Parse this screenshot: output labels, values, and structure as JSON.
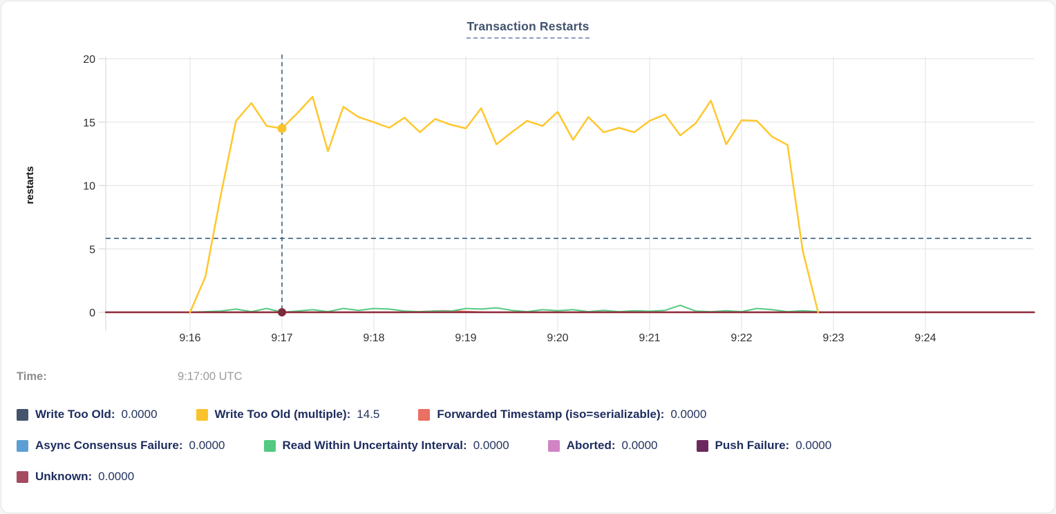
{
  "card": {
    "title": "Transaction Restarts"
  },
  "tooltip": {
    "time_label": "Time:",
    "time_value": "9:17:00 UTC"
  },
  "legend": {
    "rows": [
      {
        "items": [
          {
            "label": "Write Too Old:",
            "value": "0.0000",
            "color": "#44546C"
          },
          {
            "label": "Write Too Old (multiple):",
            "value": "14.5",
            "color": "#FAC32D"
          },
          {
            "label": "Forwarded Timestamp (iso=serializable):",
            "value": "0.0000",
            "color": "#EB6F63"
          }
        ]
      },
      {
        "items": [
          {
            "label": "Async Consensus Failure:",
            "value": "0.0000",
            "color": "#5D9FD3"
          },
          {
            "label": "Read Within Uncertainty Interval:",
            "value": "0.0000",
            "color": "#53C981"
          },
          {
            "label": "Aborted:",
            "value": "0.0000",
            "color": "#D184C4"
          },
          {
            "label": "Push Failure:",
            "value": "0.0000",
            "color": "#6B2A5E"
          }
        ]
      },
      {
        "items": [
          {
            "label": "Unknown:",
            "value": "0.0000",
            "color": "#A44A61"
          }
        ]
      }
    ]
  },
  "chart_data": {
    "type": "line",
    "title": "Transaction Restarts",
    "xlabel": "",
    "ylabel": "restarts",
    "x_ticks": [
      "9:16",
      "9:17",
      "9:18",
      "9:19",
      "9:20",
      "9:21",
      "9:22",
      "9:23",
      "9:24"
    ],
    "y_ticks": [
      0,
      5,
      10,
      15,
      20
    ],
    "ylim": [
      0,
      20
    ],
    "grid": true,
    "grid_color": "#e8e8e8",
    "hline": {
      "value": 5.83,
      "style": "dashed",
      "color": "#3A5E7D"
    },
    "crosshair": {
      "time": "9:17:00 UTC",
      "offset_seconds": 60,
      "color": "#3A5E7D",
      "markers": [
        {
          "series": "Write Too Old (multiple)",
          "value": 14.5,
          "color": "#FAC32D",
          "r": 6.5
        },
        {
          "series": "Unknown",
          "value": 0,
          "color": "#7E2A3D",
          "r": 6
        }
      ]
    },
    "series": [
      {
        "name": "Write Too Old",
        "color": "#44546C",
        "z": 1,
        "width": 2,
        "points": [
          [
            -55,
            0
          ],
          [
            551,
            0
          ]
        ]
      },
      {
        "name": "Async Consensus Failure",
        "color": "#5D9FD3",
        "z": 2,
        "width": 2,
        "points": [
          [
            -55,
            0
          ],
          [
            551,
            0
          ]
        ]
      },
      {
        "name": "Aborted",
        "color": "#D184C4",
        "z": 3,
        "width": 2,
        "points": [
          [
            -55,
            0
          ],
          [
            551,
            0
          ]
        ]
      },
      {
        "name": "Push Failure",
        "color": "#6B2A5E",
        "z": 4,
        "width": 2,
        "points": [
          [
            -55,
            0
          ],
          [
            551,
            0
          ]
        ]
      },
      {
        "name": "Forwarded Timestamp (iso=serializable)",
        "color": "#EB6F63",
        "z": 5,
        "width": 2.2,
        "points": [
          [
            -55,
            0
          ],
          [
            140,
            0
          ],
          [
            150,
            0.05
          ],
          [
            160,
            0.1
          ],
          [
            165,
            0.12
          ],
          [
            175,
            0.08
          ],
          [
            185,
            0.03
          ],
          [
            195,
            0
          ],
          [
            551,
            0
          ]
        ]
      },
      {
        "name": "Read Within Uncertainty Interval",
        "color": "#53C981",
        "z": 6,
        "width": 2,
        "points": [
          [
            0,
            0
          ],
          [
            10,
            0.05
          ],
          [
            20,
            0.1
          ],
          [
            30,
            0.25
          ],
          [
            40,
            0.05
          ],
          [
            50,
            0.3
          ],
          [
            60,
            0
          ],
          [
            70,
            0.1
          ],
          [
            80,
            0.2
          ],
          [
            90,
            0.05
          ],
          [
            100,
            0.3
          ],
          [
            110,
            0.15
          ],
          [
            120,
            0.3
          ],
          [
            130,
            0.25
          ],
          [
            140,
            0.1
          ],
          [
            150,
            0.05
          ],
          [
            160,
            0.1
          ],
          [
            170,
            0.08
          ],
          [
            180,
            0.3
          ],
          [
            190,
            0.25
          ],
          [
            200,
            0.35
          ],
          [
            210,
            0.15
          ],
          [
            220,
            0.05
          ],
          [
            230,
            0.2
          ],
          [
            240,
            0.12
          ],
          [
            250,
            0.2
          ],
          [
            260,
            0.05
          ],
          [
            270,
            0.15
          ],
          [
            280,
            0.05
          ],
          [
            290,
            0.12
          ],
          [
            300,
            0.08
          ],
          [
            310,
            0.15
          ],
          [
            320,
            0.55
          ],
          [
            330,
            0.1
          ],
          [
            340,
            0.05
          ],
          [
            350,
            0.12
          ],
          [
            360,
            0.05
          ],
          [
            370,
            0.3
          ],
          [
            380,
            0.2
          ],
          [
            390,
            0.05
          ],
          [
            400,
            0.12
          ],
          [
            410,
            0.05
          ]
        ]
      },
      {
        "name": "Unknown",
        "color": "#A44A61",
        "line_color": "#8E2B3C",
        "z": 7,
        "width": 2.4,
        "points": [
          [
            -55,
            0
          ],
          [
            551,
            0
          ]
        ]
      },
      {
        "name": "Write Too Old (multiple)",
        "color": "#FAC32D",
        "line_color": "#FFC72C",
        "z": 8,
        "width": 2.5,
        "points": [
          [
            0,
            0
          ],
          [
            10,
            2.8
          ],
          [
            20,
            9.2
          ],
          [
            30,
            15.1
          ],
          [
            40,
            16.5
          ],
          [
            50,
            14.7
          ],
          [
            60,
            14.5
          ],
          [
            70,
            15.7
          ],
          [
            80,
            17
          ],
          [
            90,
            12.7
          ],
          [
            100,
            16.2
          ],
          [
            110,
            15.4
          ],
          [
            120,
            15
          ],
          [
            130,
            14.55
          ],
          [
            140,
            15.35
          ],
          [
            150,
            14.2
          ],
          [
            160,
            15.25
          ],
          [
            170,
            14.8
          ],
          [
            180,
            14.5
          ],
          [
            190,
            16.1
          ],
          [
            200,
            13.25
          ],
          [
            210,
            14.2
          ],
          [
            220,
            15.1
          ],
          [
            230,
            14.7
          ],
          [
            240,
            15.8
          ],
          [
            250,
            13.6
          ],
          [
            260,
            15.4
          ],
          [
            270,
            14.2
          ],
          [
            280,
            14.55
          ],
          [
            290,
            14.2
          ],
          [
            300,
            15.1
          ],
          [
            310,
            15.6
          ],
          [
            320,
            13.95
          ],
          [
            330,
            14.9
          ],
          [
            340,
            16.7
          ],
          [
            350,
            13.25
          ],
          [
            360,
            15.15
          ],
          [
            370,
            15.1
          ],
          [
            380,
            13.85
          ],
          [
            390,
            13.2
          ],
          [
            400,
            4.8
          ],
          [
            410,
            0
          ]
        ]
      }
    ]
  }
}
